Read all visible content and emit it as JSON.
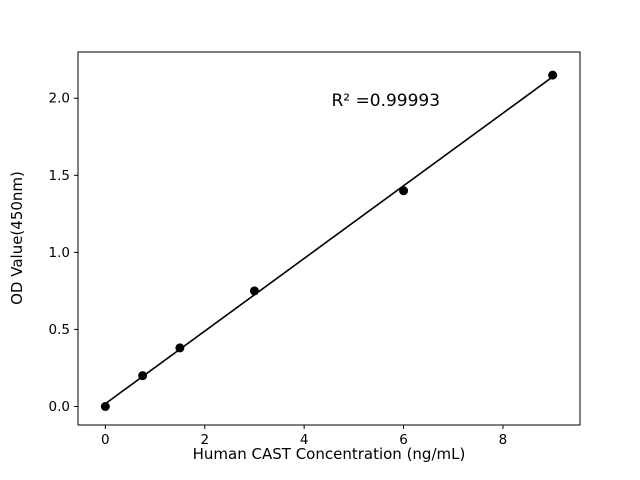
{
  "figure": {
    "background": "#ffffff"
  },
  "chart_data": {
    "type": "scatter",
    "title": "",
    "xlabel": "Human CAST Concentration (ng/mL)",
    "ylabel": "OD Value(450nm)",
    "annotation": "R² =0.99993",
    "annotation_xy": [
      4.55,
      1.95
    ],
    "xlim": [
      -0.55,
      9.55
    ],
    "ylim": [
      -0.12,
      2.3
    ],
    "xticks": [
      0,
      2,
      4,
      6,
      8
    ],
    "xtick_labels": [
      "0",
      "2",
      "4",
      "6",
      "8"
    ],
    "yticks": [
      0,
      0.5,
      1.0,
      1.5,
      2.0
    ],
    "ytick_labels": [
      "0.0",
      "0.5",
      "1.0",
      "1.5",
      "2.0"
    ],
    "grid": false,
    "legend": null,
    "axis_color": "#000000",
    "background": "#ffffff",
    "series": [
      {
        "name": "linear-fit",
        "type": "line",
        "color": "#000000",
        "line_width": 1.6,
        "x": [
          0,
          9
        ],
        "y": [
          0.018,
          2.139
        ]
      },
      {
        "name": "standard-points",
        "type": "scatter",
        "marker": "circle",
        "marker_radius": 4.5,
        "color": "#000000",
        "x": [
          0,
          0.75,
          1.5,
          3,
          6,
          9
        ],
        "y": [
          0.0,
          0.2,
          0.38,
          0.75,
          1.4,
          2.15
        ]
      }
    ]
  }
}
